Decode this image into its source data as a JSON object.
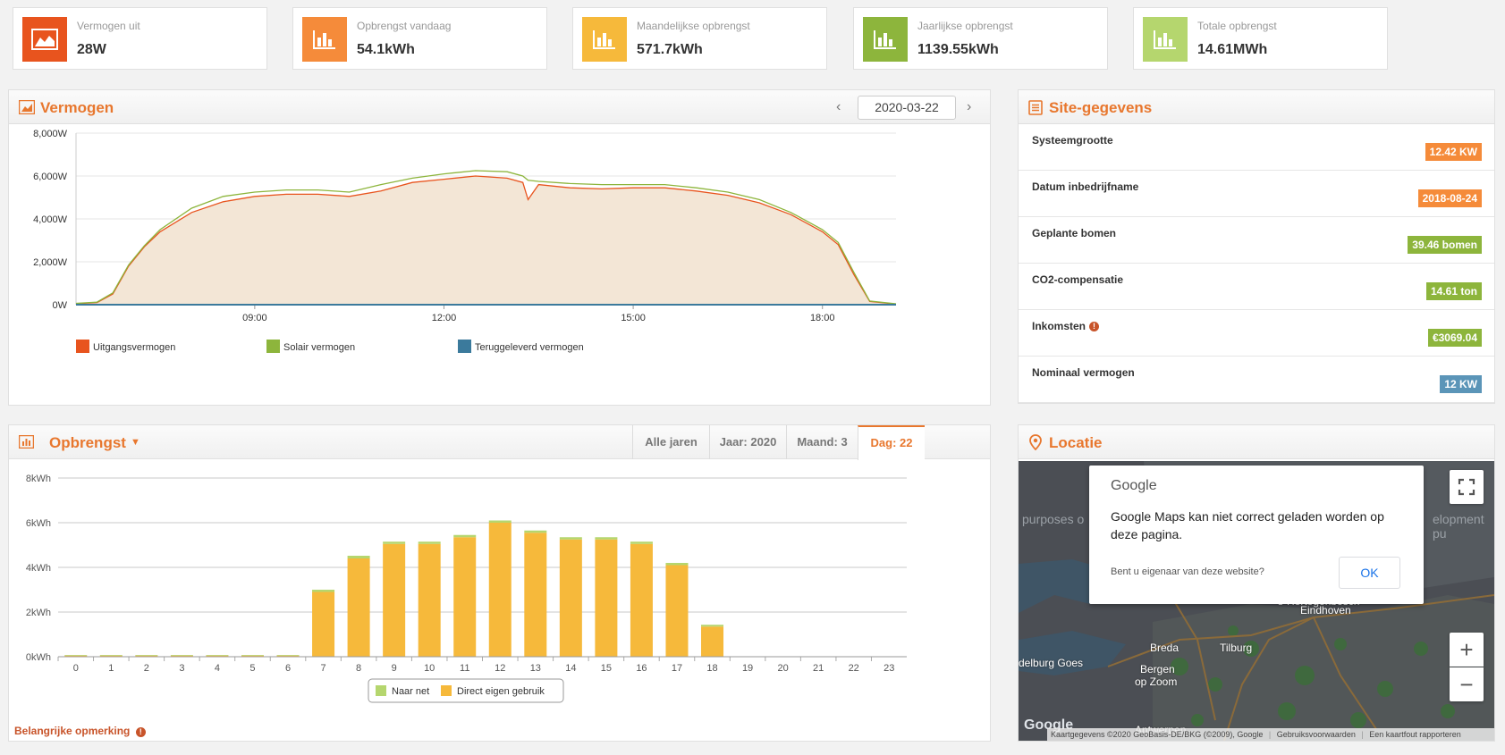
{
  "kpis": [
    {
      "label": "Vermogen uit",
      "value": "28W",
      "color": "#e8541e",
      "icon": "area-chart-icon"
    },
    {
      "label": "Opbrengst vandaag",
      "value": "54.1kWh",
      "color": "#f58b3a",
      "icon": "bar-chart-icon"
    },
    {
      "label": "Maandelijkse opbrengst",
      "value": "571.7kWh",
      "color": "#f6b93b",
      "icon": "bar-chart-icon"
    },
    {
      "label": "Jaarlijkse opbrengst",
      "value": "1139.55kWh",
      "color": "#8db53c",
      "icon": "bar-chart-icon"
    },
    {
      "label": "Totale opbrengst",
      "value": "14.61MWh",
      "color": "#b5d66e",
      "icon": "bar-chart-icon"
    }
  ],
  "power_panel": {
    "title": "Vermogen",
    "date": "2020-03-22",
    "legend": [
      {
        "label": "Uitgangsvermogen",
        "color": "#e8541e"
      },
      {
        "label": "Solair vermogen",
        "color": "#8db53c"
      },
      {
        "label": "Teruggeleverd vermogen",
        "color": "#3b7a9c"
      }
    ]
  },
  "site_panel": {
    "title": "Site-gegevens",
    "rows": [
      {
        "label": "Systeemgrootte",
        "value": "12.42 KW",
        "color": "#f58b3a"
      },
      {
        "label": "Datum inbedrijfname",
        "value": "2018-08-24",
        "color": "#f58b3a"
      },
      {
        "label": "Geplante bomen",
        "value": "39.46 bomen",
        "color": "#8db53c"
      },
      {
        "label": "CO2-compensatie",
        "value": "14.61 ton",
        "color": "#8db53c"
      },
      {
        "label": "Inkomsten",
        "value": "€3069.04",
        "color": "#8db53c"
      },
      {
        "label": "Nominaal vermogen",
        "value": "12 KW",
        "color": "#5b95b8"
      }
    ]
  },
  "yield_panel": {
    "title": "Opbrengst",
    "tabs": [
      "Alle jaren",
      "Jaar: 2020",
      "Maand: 3",
      "Dag: 22"
    ],
    "active_tab": 3,
    "legend": [
      {
        "label": "Naar net",
        "color": "#b5d66e"
      },
      {
        "label": "Direct eigen gebruik",
        "color": "#f6b93b"
      }
    ],
    "note": "Belangrijke opmerking"
  },
  "location_panel": {
    "title": "Locatie",
    "dialog_brand": "Google",
    "dialog_message": "Google Maps kan niet correct geladen worden op deze pagina.",
    "dialog_question": "Bent u eigenaar van deze website?",
    "dialog_ok": "OK",
    "map_labels": [
      "Breda",
      "Tilburg",
      "Eindhoven",
      "Bergen",
      "op Zoom",
      "Antwerpen",
      "s-Hertogenbosch",
      "delburg Goes"
    ],
    "footer": [
      "Kaartgegevens ©2020 GeoBasis-DE/BKG (©2009), Google",
      "Gebruiksvoorwaarden",
      "Een kaartfout rapporteren"
    ],
    "google_logo": "Google",
    "overlay_left": "purposes o",
    "overlay_right": "elopment pu"
  },
  "chart_data": [
    {
      "type": "area",
      "title": "Vermogen",
      "x_ticks": [
        "09:00",
        "12:00",
        "15:00",
        "18:00"
      ],
      "y_ticks": [
        "0W",
        "2,000W",
        "4,000W",
        "6,000W",
        "8,000W"
      ],
      "ylim": [
        0,
        8000
      ],
      "xlim": [
        "06:10",
        "19:10"
      ],
      "series": [
        {
          "name": "Uitgangsvermogen",
          "x": [
            "06:10",
            "06:30",
            "06:45",
            "07:00",
            "07:15",
            "07:30",
            "08:00",
            "08:30",
            "09:00",
            "09:30",
            "10:00",
            "10:30",
            "11:00",
            "11:30",
            "12:00",
            "12:30",
            "13:00",
            "13:15",
            "13:20",
            "13:30",
            "14:00",
            "14:30",
            "15:00",
            "15:30",
            "16:00",
            "16:30",
            "17:00",
            "17:30",
            "18:00",
            "18:15",
            "18:30",
            "18:45",
            "19:10"
          ],
          "values": [
            50,
            100,
            500,
            1800,
            2700,
            3400,
            4300,
            4800,
            5050,
            5150,
            5150,
            5050,
            5300,
            5700,
            5850,
            6000,
            5900,
            5700,
            4900,
            5600,
            5450,
            5400,
            5450,
            5450,
            5300,
            5100,
            4750,
            4200,
            3400,
            2800,
            1400,
            150,
            30
          ]
        },
        {
          "name": "Solair vermogen",
          "x": [
            "06:10",
            "06:30",
            "06:45",
            "07:00",
            "07:15",
            "07:30",
            "08:00",
            "08:30",
            "09:00",
            "09:30",
            "10:00",
            "10:30",
            "11:00",
            "11:30",
            "12:00",
            "12:30",
            "13:00",
            "13:15",
            "13:20",
            "13:30",
            "14:00",
            "14:30",
            "15:00",
            "15:30",
            "16:00",
            "16:30",
            "17:00",
            "17:30",
            "18:00",
            "18:15",
            "18:30",
            "18:45",
            "19:10"
          ],
          "values": [
            60,
            120,
            550,
            1850,
            2750,
            3500,
            4500,
            5050,
            5250,
            5350,
            5350,
            5250,
            5600,
            5900,
            6100,
            6250,
            6200,
            6000,
            5800,
            5750,
            5650,
            5600,
            5600,
            5600,
            5450,
            5250,
            4900,
            4300,
            3500,
            2900,
            1500,
            170,
            40
          ]
        },
        {
          "name": "Teruggeleverd vermogen",
          "x": [
            "06:10",
            "19:10"
          ],
          "values": [
            0,
            0
          ]
        }
      ]
    },
    {
      "type": "bar",
      "title": "Opbrengst",
      "categories": [
        "0",
        "1",
        "2",
        "3",
        "4",
        "5",
        "6",
        "7",
        "8",
        "9",
        "10",
        "11",
        "12",
        "13",
        "14",
        "15",
        "16",
        "17",
        "18",
        "19",
        "20",
        "21",
        "22",
        "23"
      ],
      "y_ticks": [
        "0kWh",
        "2kWh",
        "4kWh",
        "6kWh",
        "8kWh"
      ],
      "ylim": [
        0,
        8
      ],
      "series": [
        {
          "name": "Direct eigen gebruik",
          "values": [
            0.05,
            0.05,
            0.05,
            0.05,
            0.05,
            0.05,
            0.05,
            2.9,
            4.4,
            5.05,
            5.05,
            5.35,
            6.0,
            5.55,
            5.25,
            5.25,
            5.05,
            4.1,
            1.35,
            0,
            0,
            0,
            0,
            0
          ]
        },
        {
          "name": "Naar net",
          "values": [
            0.03,
            0.03,
            0.03,
            0.03,
            0.03,
            0.03,
            0.03,
            0.1,
            0.12,
            0.1,
            0.1,
            0.1,
            0.1,
            0.1,
            0.1,
            0.1,
            0.1,
            0.1,
            0.08,
            0,
            0,
            0,
            0,
            0
          ]
        }
      ]
    }
  ]
}
